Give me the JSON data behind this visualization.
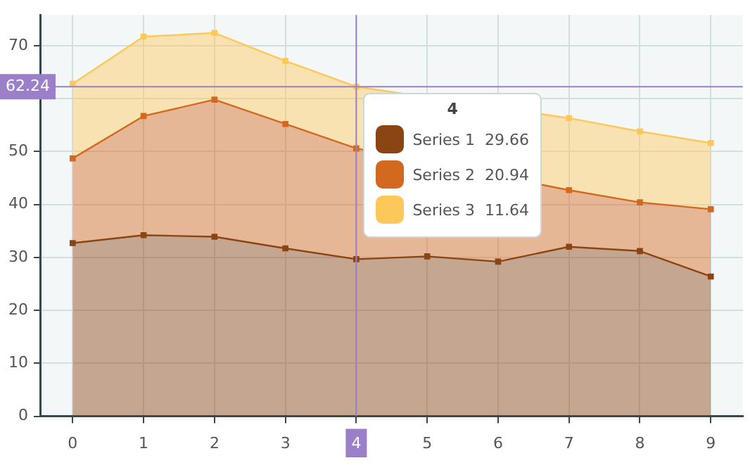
{
  "chart_data": {
    "type": "area",
    "stacked": true,
    "x": [
      0,
      1,
      2,
      3,
      4,
      5,
      6,
      7,
      8,
      9
    ],
    "series": [
      {
        "name": "Series 1",
        "color": "#8b4513",
        "values": [
          32.7,
          34.2,
          33.9,
          31.7,
          29.66,
          30.2,
          29.2,
          32.0,
          31.2,
          26.4
        ],
        "value_labels": [
          null,
          null,
          null,
          null,
          "29.66",
          null,
          null,
          null,
          null,
          null
        ]
      },
      {
        "name": "Series 2",
        "color": "#d2691e",
        "values": [
          16.0,
          22.5,
          25.9,
          23.5,
          20.94,
          null,
          null,
          10.7,
          9.2,
          12.7
        ],
        "value_labels": [
          null,
          null,
          null,
          null,
          "20.94",
          null,
          null,
          null,
          null,
          null
        ]
      },
      {
        "name": "Series 3",
        "color": "#fcc85a",
        "values": [
          14.1,
          15.0,
          12.6,
          11.9,
          11.64,
          null,
          null,
          13.6,
          13.4,
          12.5
        ],
        "value_labels": [
          null,
          null,
          null,
          null,
          "11.64",
          null,
          null,
          null,
          null,
          null
        ]
      }
    ],
    "xlim": [
      -0.45,
      9.45
    ],
    "xticks": [
      0,
      1,
      2,
      3,
      4,
      5,
      6,
      7,
      8,
      9
    ],
    "ylim": [
      0,
      75.8
    ],
    "yticks": [
      0,
      10,
      20,
      30,
      40,
      50,
      {
        "value": 60,
        "label": null
      },
      70
    ],
    "ref_lines": [
      {
        "axis": "x",
        "value": 4,
        "color": "#9b7fc8"
      },
      {
        "axis": "y",
        "value": 62.24,
        "label": "62.24",
        "color": "#9b7fc8"
      }
    ],
    "annotations": [
      "4"
    ],
    "grid": true,
    "legend": "top",
    "marker": "square",
    "line_style": "solid"
  }
}
